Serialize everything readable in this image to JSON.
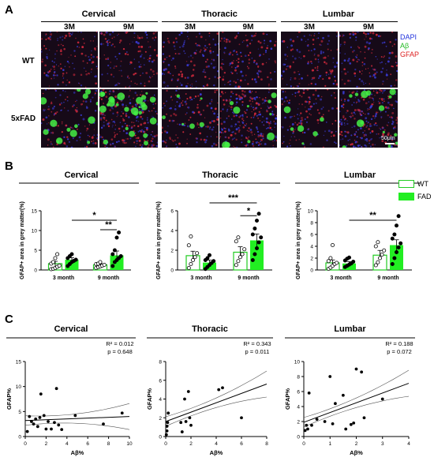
{
  "panels": {
    "a": "A",
    "b": "B",
    "c": "C"
  },
  "regions": [
    "Cervical",
    "Thoracic",
    "Lumbar"
  ],
  "panel_a": {
    "ages": [
      "3M",
      "9M"
    ],
    "genotypes": [
      "WT",
      "5xFAD"
    ],
    "channel_legend": [
      {
        "label": "DAPI",
        "color": "#2233dd"
      },
      {
        "label": "Aβ",
        "color": "#22bb22"
      },
      {
        "label": "GFAP",
        "color": "#dd2222"
      }
    ],
    "scale_bar": "50μm"
  },
  "panel_b": {
    "legend": [
      {
        "label": "WT"
      },
      {
        "label": "FAD"
      }
    ],
    "colors": {
      "wt_bar": "#ffffff",
      "wt_edge": "#22cc22",
      "fad_bar": "#22ee22"
    }
  },
  "chart_data": [
    {
      "type": "bar",
      "title": "Cervical",
      "ylabel": "GFAP+ area in grey matter(%)",
      "categories": [
        "3 month",
        "9 month"
      ],
      "ylim": [
        0,
        15
      ],
      "yticks": [
        0,
        5,
        10,
        15
      ],
      "series": [
        {
          "name": "WT",
          "values": [
            1.6,
            1.3
          ],
          "errors": [
            0.6,
            0.3
          ],
          "points": [
            [
              0.2,
              0.3,
              0.5,
              0.8,
              1.1,
              1.6,
              2.0,
              3.0,
              4.0
            ],
            [
              0.5,
              0.7,
              0.9,
              1.1,
              1.3,
              1.5,
              1.6,
              2.0
            ]
          ]
        },
        {
          "name": "FAD",
          "values": [
            2.6,
            3.7
          ],
          "errors": [
            0.5,
            1.1
          ],
          "points": [
            [
              1.0,
              1.5,
              2.0,
              2.3,
              2.6,
              3.0,
              3.5,
              4.0
            ],
            [
              1.0,
              2.0,
              2.5,
              3.0,
              3.5,
              4.0,
              5.0,
              8.2,
              9.5
            ]
          ]
        }
      ],
      "significance": [
        {
          "from": "3 month FAD",
          "to": "9 month FAD",
          "label": "*",
          "y": 12.6
        },
        {
          "from": "9 month WT",
          "to": "9 month FAD",
          "label": "**",
          "y": 10.2
        }
      ]
    },
    {
      "type": "bar",
      "title": "Thoracic",
      "ylabel": "GFAP+ area in grey matter(%)",
      "categories": [
        "3 month",
        "9 month"
      ],
      "ylim": [
        0,
        6
      ],
      "yticks": [
        0,
        2,
        4,
        6
      ],
      "series": [
        {
          "name": "WT",
          "values": [
            1.45,
            1.8
          ],
          "errors": [
            0.45,
            0.55
          ],
          "points": [
            [
              0.2,
              0.6,
              1.0,
              1.3,
              1.7,
              2.5,
              3.4
            ],
            [
              0.5,
              0.9,
              1.3,
              1.6,
              2.1,
              2.9,
              3.3
            ]
          ]
        },
        {
          "name": "FAD",
          "values": [
            0.75,
            3.0
          ],
          "errors": [
            0.25,
            0.65
          ],
          "points": [
            [
              0.1,
              0.3,
              0.5,
              0.7,
              0.9,
              1.0,
              1.2,
              1.5
            ],
            [
              1.0,
              1.6,
              2.2,
              2.8,
              3.3,
              3.6,
              4.2,
              5.0,
              5.7
            ]
          ]
        }
      ],
      "significance": [
        {
          "from": "3 month FAD",
          "to": "9 month FAD",
          "label": "***",
          "y": 6.8
        },
        {
          "from": "9 month WT",
          "to": "9 month FAD",
          "label": "*",
          "y": 5.5
        }
      ]
    },
    {
      "type": "bar",
      "title": "Lumbar",
      "ylabel": "GFAP+ area in grey matter(%)",
      "categories": [
        "3 month",
        "9 month"
      ],
      "ylim": [
        0,
        10
      ],
      "yticks": [
        0,
        2,
        4,
        6,
        8,
        10
      ],
      "series": [
        {
          "name": "WT",
          "values": [
            1.2,
            2.5
          ],
          "errors": [
            0.5,
            0.8
          ],
          "points": [
            [
              0.2,
              0.4,
              0.7,
              1.0,
              1.2,
              1.5,
              2.0,
              4.2
            ],
            [
              0.8,
              1.3,
              2.0,
              2.6,
              3.3,
              4.0,
              4.7
            ]
          ]
        },
        {
          "name": "FAD",
          "values": [
            1.1,
            4.2
          ],
          "errors": [
            0.3,
            0.9
          ],
          "points": [
            [
              0.5,
              0.7,
              0.9,
              1.1,
              1.4,
              1.6,
              1.9,
              2.1
            ],
            [
              1.0,
              2.0,
              3.0,
              3.8,
              4.5,
              5.3,
              6.0,
              7.5,
              9.1
            ]
          ]
        }
      ],
      "significance": [
        {
          "from": "3 month FAD",
          "to": "9 month FAD",
          "label": "**",
          "y": 8.4
        }
      ]
    },
    {
      "type": "scatter",
      "title": "Cervical",
      "xlabel": "Aβ%",
      "ylabel": "GFAP%",
      "xlim": [
        0,
        10
      ],
      "ylim": [
        0,
        15
      ],
      "xticks": [
        0,
        2,
        4,
        6,
        8,
        10
      ],
      "yticks": [
        0,
        5,
        10,
        15
      ],
      "annotation": [
        "R² = 0.012",
        "p = 0.648"
      ],
      "points": [
        [
          0.2,
          1
        ],
        [
          0.4,
          4
        ],
        [
          0.6,
          3
        ],
        [
          0.8,
          2.5
        ],
        [
          1.0,
          3.5
        ],
        [
          1.2,
          2
        ],
        [
          1.4,
          3.8
        ],
        [
          1.5,
          8.5
        ],
        [
          1.8,
          4.2
        ],
        [
          2.0,
          1.5
        ],
        [
          2.2,
          3
        ],
        [
          2.5,
          1.5
        ],
        [
          2.8,
          2.8
        ],
        [
          3.0,
          9.6
        ],
        [
          3.2,
          2.3
        ],
        [
          3.5,
          1.4
        ],
        [
          4.8,
          4.2
        ],
        [
          7.5,
          2.5
        ],
        [
          9.3,
          4.7
        ]
      ],
      "fit": {
        "slope": 0.08,
        "intercept": 3.2
      }
    },
    {
      "type": "scatter",
      "title": "Thoracic",
      "xlabel": "Aβ%",
      "ylabel": "GFAP%",
      "xlim": [
        0,
        8
      ],
      "ylim": [
        0,
        8
      ],
      "xticks": [
        0,
        2,
        4,
        6,
        8
      ],
      "yticks": [
        0,
        2,
        4,
        6,
        8
      ],
      "annotation": [
        "R² = 0.343",
        "p = 0.011"
      ],
      "points": [
        [
          0.05,
          0.2
        ],
        [
          0.1,
          0.6
        ],
        [
          0.1,
          1.1
        ],
        [
          0.15,
          1.5
        ],
        [
          0.2,
          2.5
        ],
        [
          1.2,
          1.5
        ],
        [
          1.3,
          0.5
        ],
        [
          1.5,
          4.0
        ],
        [
          1.6,
          1.6
        ],
        [
          1.8,
          4.8
        ],
        [
          1.9,
          2.0
        ],
        [
          2.0,
          1.2
        ],
        [
          4.2,
          5.0
        ],
        [
          4.5,
          5.2
        ],
        [
          6.0,
          2.0
        ]
      ],
      "fit": {
        "slope": 0.5,
        "intercept": 1.6
      }
    },
    {
      "type": "scatter",
      "title": "Lumbar",
      "xlabel": "Aβ%",
      "ylabel": "GFAP%",
      "xlim": [
        0,
        4
      ],
      "ylim": [
        0,
        10
      ],
      "xticks": [
        0,
        1,
        2,
        3,
        4
      ],
      "yticks": [
        0,
        2,
        4,
        6,
        8,
        10
      ],
      "annotation": [
        "R² = 0.188",
        "p = 0.072"
      ],
      "points": [
        [
          0.05,
          0.8
        ],
        [
          0.1,
          1.5
        ],
        [
          0.15,
          1.0
        ],
        [
          0.2,
          5.8
        ],
        [
          0.3,
          1.5
        ],
        [
          0.5,
          2.3
        ],
        [
          0.8,
          2.0
        ],
        [
          1.0,
          8.0
        ],
        [
          1.1,
          1.7
        ],
        [
          1.2,
          4.4
        ],
        [
          1.5,
          5.5
        ],
        [
          1.6,
          1.0
        ],
        [
          1.8,
          1.6
        ],
        [
          1.9,
          1.8
        ],
        [
          2.0,
          9.0
        ],
        [
          2.2,
          8.6
        ],
        [
          2.3,
          2.5
        ],
        [
          3.0,
          5.0
        ]
      ],
      "fit": {
        "slope": 1.3,
        "intercept": 1.9
      }
    }
  ]
}
